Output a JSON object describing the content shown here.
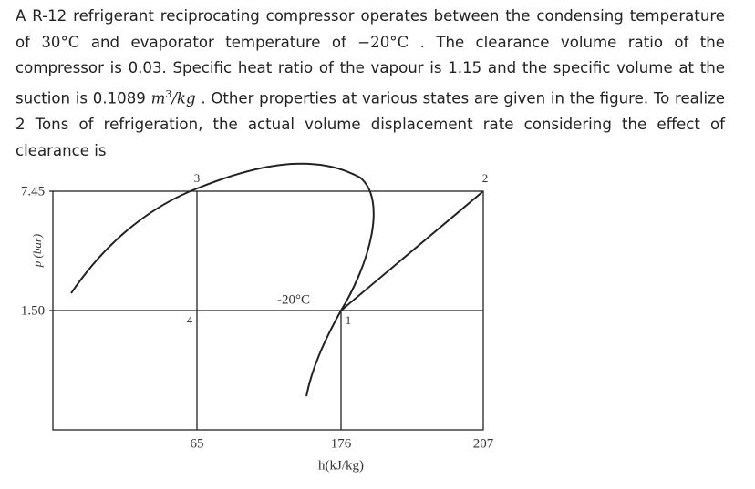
{
  "question": {
    "parts": [
      "A R-12 refrigerant reciprocating compressor operates between the condensing temperature of ",
      "30°C",
      " and evaporator temperature of ",
      "−20°C",
      " . The clearance volume ratio of the compressor is 0.03. Specific heat ratio of the vapour is 1.15 and the specific volume at the suction is 0.1089 ",
      "m",
      "3",
      "/kg",
      " . Other properties at various states are given in the figure. To realize 2 Tons of refrigeration, the actual volume displacement rate considering the effect of clearance is"
    ]
  },
  "figure": {
    "y_axis_label": "p (bar)",
    "y_labels": [
      "7.45",
      "1.50"
    ],
    "x_axis_label": "h(kJ/kg)",
    "x_labels": [
      "65",
      "176",
      "207"
    ],
    "points": [
      "3",
      "2",
      "4",
      "1"
    ],
    "isotherm_label": "-20°C"
  }
}
